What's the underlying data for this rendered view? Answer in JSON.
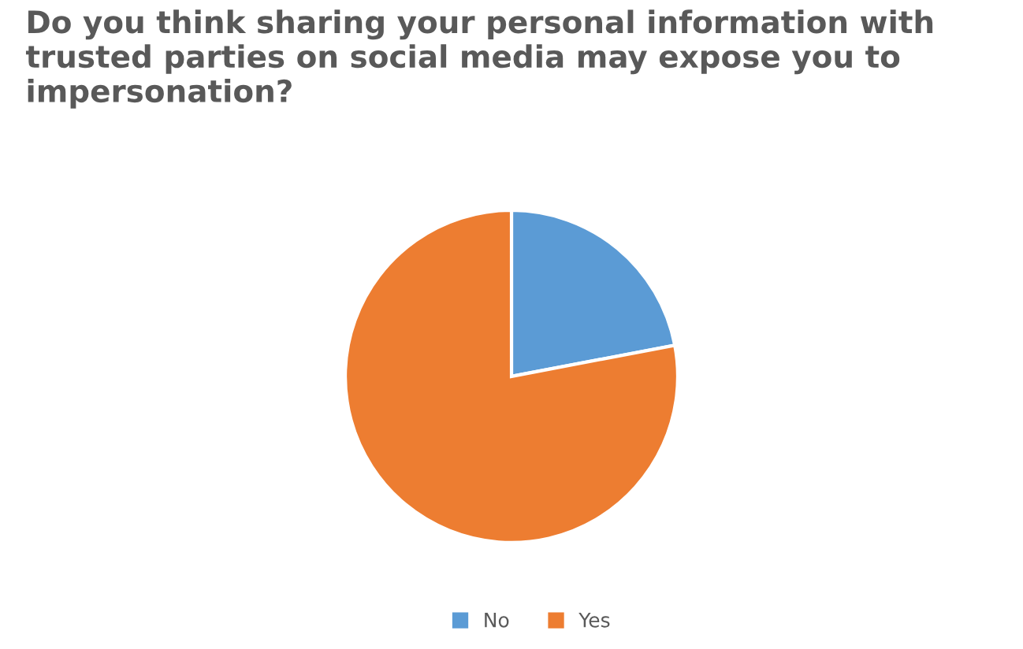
{
  "chart_data": {
    "type": "pie",
    "title": "Do you think sharing your personal information with trusted parties on social media may expose you to impersonation?",
    "categories": [
      "No",
      "Yes"
    ],
    "values": [
      22,
      78
    ],
    "colors": [
      "#5b9bd5",
      "#ed7d31"
    ],
    "legend": "bottom"
  }
}
